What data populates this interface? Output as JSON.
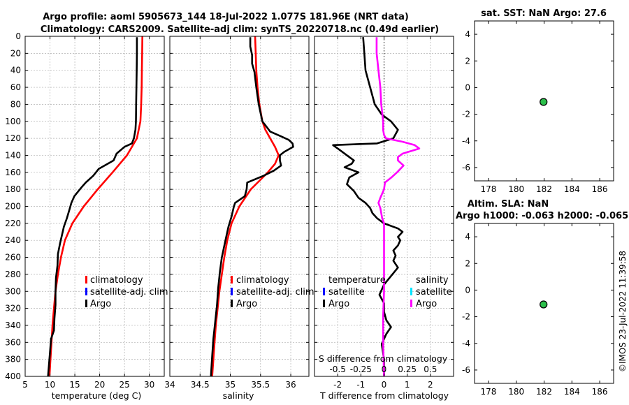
{
  "title": {
    "line1": "Argo profile: aoml 5905673_144 18-Jul-2022 1.077S 181.96E (NRT data)",
    "line2": "Climatology: CARS2009. Satellite-adj clim: synTS_20220718.nc (0.49d earlier)"
  },
  "credit": "©IMOS 23-Jul-2022 11:39:58",
  "colors": {
    "climatology": "#ff0000",
    "satellite": "#0000ff",
    "argo": "#000000",
    "salinity_diff": "#ff00ff",
    "salinity_sat": "#00e5ff",
    "marker": "#2bbf4a",
    "grid": "#b0b0b0"
  },
  "chart_data": [
    {
      "id": "temperature",
      "type": "line",
      "xlabel": "temperature (deg C)",
      "xlim": [
        5,
        33
      ],
      "ylim": [
        0,
        400
      ],
      "y_reversed": true,
      "xticks": [
        5,
        10,
        15,
        20,
        25,
        30
      ],
      "yticks": [
        0,
        20,
        40,
        60,
        80,
        100,
        120,
        140,
        160,
        180,
        200,
        220,
        240,
        260,
        280,
        300,
        320,
        340,
        360,
        380,
        400
      ],
      "legend": [
        "climatology",
        "satellite-adj. clim",
        "Argo"
      ],
      "series": [
        {
          "name": "climatology",
          "color": "#ff0000",
          "depth": [
            0,
            20,
            40,
            60,
            80,
            100,
            120,
            140,
            160,
            180,
            200,
            220,
            240,
            260,
            280,
            300,
            320,
            340,
            360,
            380,
            400
          ],
          "values": [
            28.6,
            28.55,
            28.5,
            28.45,
            28.35,
            28.2,
            27.5,
            25.5,
            22.6,
            19.6,
            16.8,
            14.5,
            13.0,
            12.2,
            11.6,
            11.1,
            10.8,
            10.5,
            10.3,
            10.1,
            9.9
          ]
        },
        {
          "name": "Argo",
          "color": "#000000",
          "depth": [
            1,
            20,
            40,
            60,
            80,
            100,
            110,
            120,
            126,
            130,
            138,
            146,
            150,
            156,
            164,
            172,
            178,
            188,
            196,
            204,
            214,
            224,
            234,
            244,
            256,
            270,
            284,
            300,
            316,
            332,
            346,
            356,
            372,
            386,
            400
          ],
          "values": [
            27.5,
            27.5,
            27.45,
            27.4,
            27.35,
            27.3,
            27.2,
            26.9,
            26.5,
            25.0,
            23.4,
            22.8,
            21.6,
            19.8,
            18.7,
            17.2,
            16.3,
            14.9,
            14.3,
            13.9,
            13.4,
            12.8,
            12.4,
            12.0,
            11.6,
            11.5,
            11.2,
            11.1,
            11.1,
            10.9,
            10.8,
            10.2,
            10.0,
            9.8,
            9.6
          ]
        }
      ]
    },
    {
      "id": "salinity",
      "type": "line",
      "xlabel": "salinity",
      "xlim": [
        34,
        36.3
      ],
      "ylim": [
        0,
        400
      ],
      "y_reversed": true,
      "xticks": [
        34,
        34.5,
        35,
        35.5,
        36
      ],
      "legend": [
        "climatology",
        "satellite-adj. clim",
        "Argo"
      ],
      "series": [
        {
          "name": "climatology",
          "color": "#ff0000",
          "depth": [
            0,
            20,
            40,
            60,
            80,
            100,
            110,
            120,
            130,
            140,
            150,
            160,
            170,
            180,
            200,
            220,
            240,
            260,
            280,
            300,
            320,
            340,
            360,
            380,
            400
          ],
          "values": [
            35.41,
            35.42,
            35.43,
            35.45,
            35.48,
            35.53,
            35.58,
            35.66,
            35.74,
            35.8,
            35.74,
            35.62,
            35.48,
            35.34,
            35.15,
            35.02,
            34.95,
            34.9,
            34.86,
            34.82,
            34.79,
            34.76,
            34.74,
            34.72,
            34.7
          ]
        },
        {
          "name": "Argo",
          "color": "#000000",
          "depth": [
            1,
            12,
            22,
            32,
            42,
            60,
            80,
            100,
            112,
            118,
            122,
            126,
            130,
            136,
            140,
            146,
            152,
            158,
            164,
            172,
            180,
            188,
            196,
            200,
            212,
            224,
            240,
            260,
            276,
            296,
            316,
            336,
            356,
            376,
            400
          ],
          "values": [
            35.33,
            35.33,
            35.36,
            35.36,
            35.4,
            35.43,
            35.47,
            35.53,
            35.66,
            35.85,
            35.97,
            36.03,
            36.04,
            35.89,
            35.82,
            35.82,
            35.84,
            35.72,
            35.55,
            35.28,
            35.27,
            35.24,
            35.08,
            35.06,
            35.02,
            34.97,
            34.92,
            34.86,
            34.83,
            34.8,
            34.78,
            34.75,
            34.72,
            34.7,
            34.68
          ]
        }
      ]
    },
    {
      "id": "differences",
      "type": "line",
      "xlabel": "T difference from climatology",
      "top_label": "S difference from climatology",
      "xlim": [
        -3,
        3
      ],
      "ylim": [
        0,
        400
      ],
      "y_reversed": true,
      "xticks": [
        -2,
        -1,
        0,
        1,
        2
      ],
      "top_ticks": [
        "-0.5",
        "-0.25",
        "0",
        "0.25",
        "0.5"
      ],
      "top_ticks_values": [
        -0.5,
        -0.25,
        0,
        0.25,
        0.5
      ],
      "top_scale": "S diff x 4 on T-diff axis",
      "legend_temperature_title": "temperature",
      "legend_salinity_title": "salinity",
      "legend_temperature": [
        "satellite",
        "Argo"
      ],
      "legend_salinity": [
        "satellite",
        "Argo"
      ],
      "series": [
        {
          "name": "Argo temperature difference",
          "color": "#000000",
          "depth": [
            1,
            20,
            40,
            60,
            80,
            92,
            100,
            110,
            120,
            126,
            128,
            134,
            140,
            146,
            150,
            154,
            160,
            166,
            174,
            182,
            190,
            196,
            202,
            208,
            214,
            220,
            226,
            230,
            236,
            240,
            246,
            252,
            258,
            264,
            272,
            282,
            292,
            304,
            314,
            324,
            334,
            342,
            350,
            362,
            380,
            400
          ],
          "values": [
            -0.9,
            -0.85,
            -0.8,
            -0.6,
            -0.4,
            -0.1,
            0.3,
            0.6,
            0.4,
            -0.3,
            -2.2,
            -1.9,
            -1.6,
            -1.3,
            -1.4,
            -1.7,
            -1.1,
            -1.5,
            -1.6,
            -1.3,
            -1.1,
            -0.8,
            -0.6,
            -0.5,
            -0.3,
            0.0,
            0.6,
            0.8,
            0.6,
            0.7,
            0.6,
            0.4,
            0.5,
            0.4,
            0.6,
            0.3,
            0.0,
            -0.2,
            0.0,
            0.0,
            0.1,
            0.3,
            0.1,
            -0.1,
            0.0,
            0.0
          ]
        },
        {
          "name": "Argo salinity difference",
          "color": "#ff00ff",
          "depth": [
            1,
            20,
            40,
            60,
            80,
            100,
            110,
            116,
            120,
            124,
            128,
            132,
            138,
            142,
            146,
            152,
            160,
            166,
            172,
            180,
            190,
            196,
            202,
            208,
            214,
            220,
            240,
            270,
            300,
            330,
            360,
            400
          ],
          "values": [
            -0.08,
            -0.08,
            -0.06,
            -0.04,
            -0.03,
            -0.01,
            -0.01,
            0.0,
            0.02,
            0.2,
            0.33,
            0.38,
            0.2,
            0.15,
            0.15,
            0.21,
            0.14,
            0.08,
            0.01,
            0.0,
            -0.04,
            -0.06,
            -0.04,
            -0.03,
            -0.02,
            0.0,
            0.0,
            0.0,
            0.0,
            -0.01,
            -0.01,
            0.0
          ]
        }
      ]
    },
    {
      "id": "sst_map",
      "type": "scatter",
      "title": "sat. SST: NaN Argo: 27.6",
      "xlim": [
        177,
        187
      ],
      "ylim": [
        -7,
        5
      ],
      "xticks": [
        178,
        180,
        182,
        184,
        186
      ],
      "yticks": [
        4,
        2,
        0,
        -2,
        -4,
        -6
      ],
      "x": [
        181.96
      ],
      "y": [
        -1.077
      ]
    },
    {
      "id": "sla_map",
      "type": "scatter",
      "title": "Altim. SLA: NaN",
      "subtitle": "Argo h1000: -0.063 h2000: -0.065",
      "xlim": [
        177,
        187
      ],
      "ylim": [
        -7,
        5
      ],
      "xticks": [
        178,
        180,
        182,
        184,
        186
      ],
      "yticks": [
        4,
        2,
        0,
        -2,
        -4,
        -6
      ],
      "x": [
        181.96
      ],
      "y": [
        -1.077
      ]
    }
  ]
}
